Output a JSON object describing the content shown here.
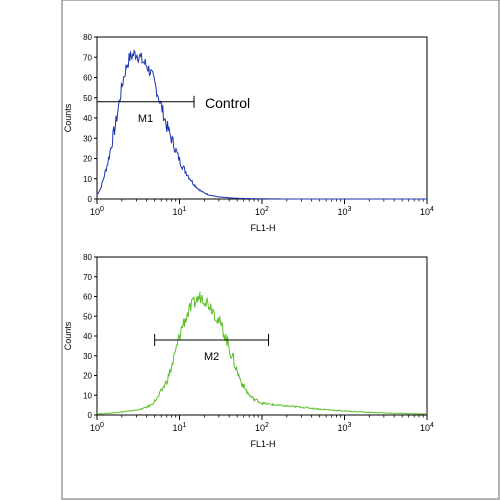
{
  "chart_data": [
    {
      "type": "line",
      "xscale": "log",
      "xlim": [
        1,
        10000
      ],
      "ylim": [
        0,
        80
      ],
      "xlabel": "FL1-H",
      "ylabel": "Counts",
      "xtick_labels": [
        {
          "base": "10",
          "exp": "0"
        },
        {
          "base": "10",
          "exp": "1"
        },
        {
          "base": "10",
          "exp": "2"
        },
        {
          "base": "10",
          "exp": "3"
        },
        {
          "base": "10",
          "exp": "4"
        }
      ],
      "yticks": [
        "0",
        "10",
        "20",
        "30",
        "40",
        "50",
        "60",
        "70",
        "80"
      ],
      "color": "#1c36b0",
      "gate": {
        "label": "M1",
        "x_start": 1,
        "x_end": 15,
        "y": 48
      },
      "annotation": "Control",
      "series": [
        {
          "x": [
            1,
            1.1,
            1.2,
            1.35,
            1.5,
            1.7,
            1.9,
            2.1,
            2.3,
            2.5,
            2.7,
            3.0,
            3.3,
            3.6,
            4.0,
            4.4,
            4.8,
            5.3,
            5.8,
            6.4,
            7.0,
            7.8,
            8.7,
            9.6,
            10.6,
            11.7,
            13,
            14.5,
            16,
            18,
            20,
            23,
            26,
            30,
            35,
            42,
            55,
            75,
            100,
            200,
            1000,
            10000
          ],
          "y": [
            2,
            5,
            10,
            18,
            27,
            38,
            50,
            60,
            66,
            70,
            71,
            72,
            70,
            68,
            66,
            63,
            59,
            54,
            48,
            42,
            36,
            31,
            26,
            21,
            17,
            14,
            11,
            8,
            6,
            4,
            3,
            2,
            1.5,
            1,
            0.8,
            0.5,
            0.3,
            0.2,
            0.1,
            0,
            0,
            0
          ]
        }
      ]
    },
    {
      "type": "line",
      "xscale": "log",
      "xlim": [
        1,
        10000
      ],
      "ylim": [
        0,
        80
      ],
      "xlabel": "FL1-H",
      "ylabel": "Counts",
      "xtick_labels": [
        {
          "base": "10",
          "exp": "0"
        },
        {
          "base": "10",
          "exp": "1"
        },
        {
          "base": "10",
          "exp": "2"
        },
        {
          "base": "10",
          "exp": "3"
        },
        {
          "base": "10",
          "exp": "4"
        }
      ],
      "yticks": [
        "0",
        "10",
        "20",
        "30",
        "40",
        "50",
        "60",
        "70",
        "80"
      ],
      "color": "#5cbf2a",
      "gate": {
        "label": "M2",
        "x_start": 5,
        "x_end": 120,
        "y": 38
      },
      "series": [
        {
          "x": [
            1,
            1.5,
            2,
            2.5,
            3,
            3.5,
            4,
            4.5,
            5,
            5.5,
            6,
            7,
            8,
            9,
            10,
            11,
            12.5,
            14,
            16,
            18,
            20,
            22,
            25,
            28,
            32,
            36,
            40,
            45,
            50,
            56,
            63,
            70,
            80,
            90,
            100,
            120,
            150,
            200,
            300,
            500,
            1000,
            3000,
            10000
          ],
          "y": [
            0.5,
            1,
            1.5,
            2,
            2.5,
            3,
            4,
            5,
            7,
            9,
            12,
            17,
            24,
            32,
            40,
            46,
            51,
            55,
            58,
            60,
            59,
            57,
            54,
            50,
            45,
            40,
            34,
            28,
            22,
            17,
            13,
            10,
            8,
            7,
            6,
            5.5,
            5,
            4.5,
            4,
            3,
            2,
            1,
            0.5
          ]
        }
      ]
    }
  ]
}
